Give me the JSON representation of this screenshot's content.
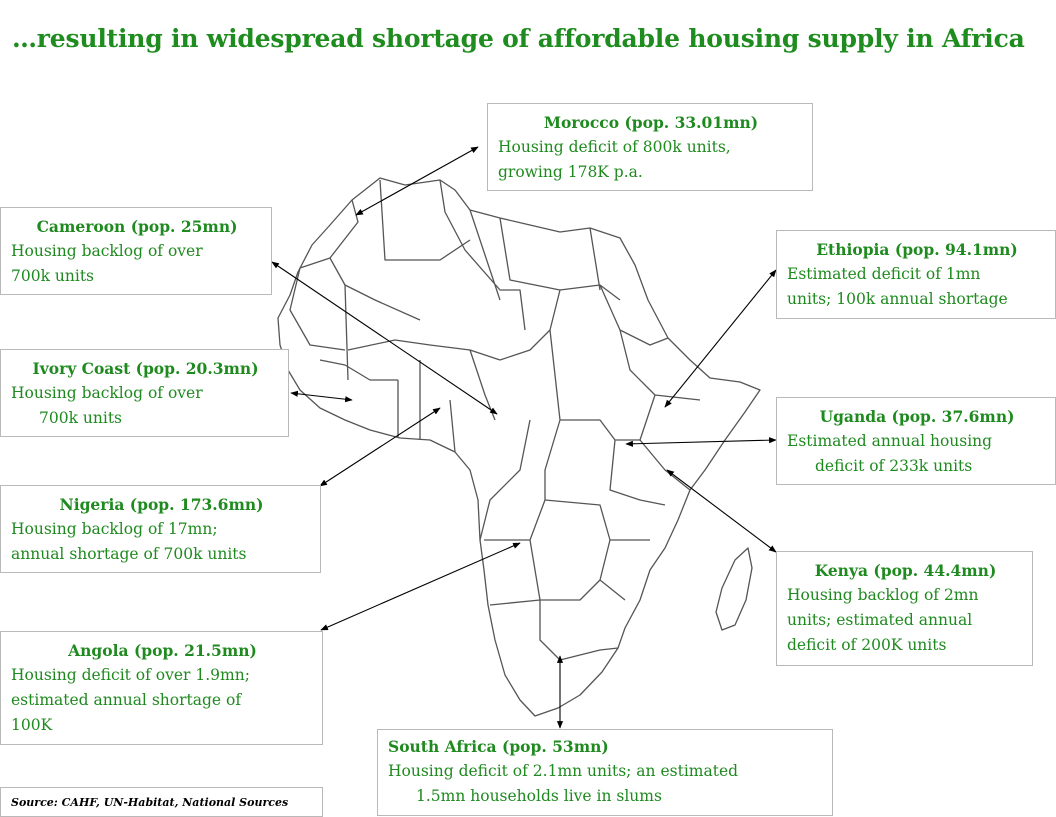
{
  "title": "…resulting in widespread  shortage of affordable housing supply  in Africa",
  "source": "Source: CAHF, UN-Habitat, National Sources",
  "colors": {
    "text": "#1f8a1f",
    "border": "#b9b9b9",
    "map": "#555555"
  },
  "countries": {
    "morocco": {
      "heading": "Morocco (pop. 33.01mn)",
      "line1": "Housing deficit of 800k units,",
      "line2": "growing 178K p.a."
    },
    "cameroon": {
      "heading": "Cameroon (pop. 25mn)",
      "line1": "Housing backlog of over",
      "line2": "700k units"
    },
    "ivory_coast": {
      "heading": "Ivory Coast (pop. 20.3mn)",
      "line1": "Housing backlog of over",
      "line2": "700k units"
    },
    "nigeria": {
      "heading": "Nigeria  (pop. 173.6mn)",
      "line1": "Housing backlog of 17mn;",
      "line2": "annual shortage of 700k units"
    },
    "angola": {
      "heading": "Angola (pop. 21.5mn)",
      "line1": "Housing deficit of over 1.9mn;",
      "line2": "estimated annual shortage of",
      "line3": "100K"
    },
    "ethiopia": {
      "heading": "Ethiopia (pop. 94.1mn)",
      "line1": "Estimated deficit of 1mn",
      "line2": "units; 100k annual shortage"
    },
    "uganda": {
      "heading": "Uganda (pop. 37.6mn)",
      "line1": "Estimated annual housing",
      "line2": "deficit of 233k units"
    },
    "kenya": {
      "heading": "Kenya (pop. 44.4mn)",
      "line1": "Housing backlog of 2mn",
      "line2": "units; estimated annual",
      "line3": "deficit of 200K units"
    },
    "south_africa": {
      "heading": "South Africa (pop. 53mn)",
      "line1": "Housing deficit of 2.1mn units; an estimated",
      "line2": "1.5mn households live in slums"
    }
  }
}
